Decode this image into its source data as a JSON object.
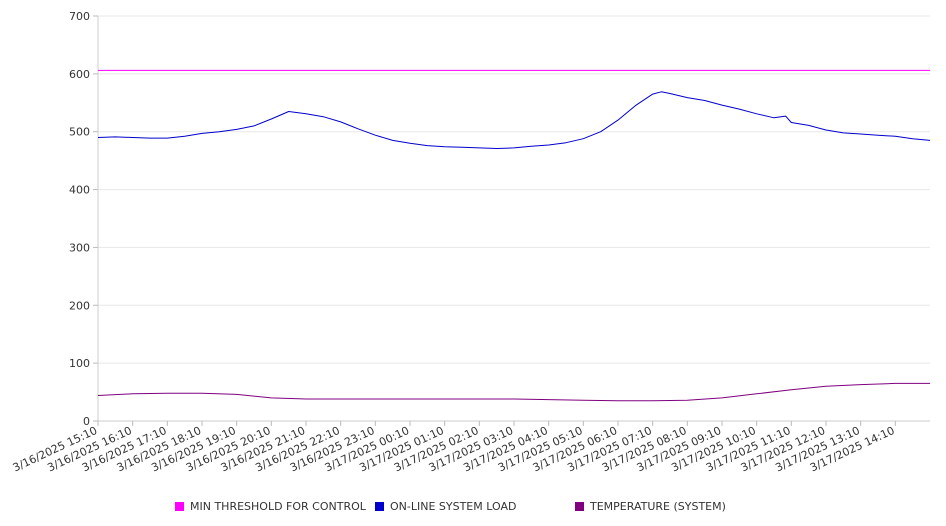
{
  "chart_data": {
    "type": "line",
    "title": "",
    "xlabel": "",
    "ylabel": "",
    "ylim": [
      0,
      700
    ],
    "yticks": [
      "0",
      "100",
      "200",
      "300",
      "400",
      "500",
      "600",
      "700"
    ],
    "xticks": [
      "3/16/2025 15:10",
      "3/16/2025 16:10",
      "3/16/2025 17:10",
      "3/16/2025 18:10",
      "3/16/2025 19:10",
      "3/16/2025 20:10",
      "3/16/2025 21:10",
      "3/16/2025 22:10",
      "3/16/2025 23:10",
      "3/17/2025 00:10",
      "3/17/2025 01:10",
      "3/17/2025 02:10",
      "3/17/2025 03:10",
      "3/17/2025 04:10",
      "3/17/2025 05:10",
      "3/17/2025 06:10",
      "3/17/2025 07:10",
      "3/17/2025 08:10",
      "3/17/2025 09:10",
      "3/17/2025 10:10",
      "3/17/2025 11:10",
      "3/17/2025 12:10",
      "3/17/2025 13:10",
      "3/17/2025 14:10"
    ],
    "x_range": [
      "3/16/2025 15:10",
      "3/17/2025 15:10"
    ],
    "grid": true,
    "legend_position": "bottom",
    "series": [
      {
        "name": "MIN THRESHOLD FOR CONTROL",
        "color": "#ff00ff",
        "points": [
          [
            "3/16/2025 15:10",
            606
          ],
          [
            "3/17/2025 15:10",
            606
          ]
        ]
      },
      {
        "name": "ON-LINE SYSTEM LOAD",
        "color": "#0000cc",
        "points": [
          [
            "3/16/2025 15:10",
            490
          ],
          [
            "3/16/2025 15:40",
            491
          ],
          [
            "3/16/2025 16:10",
            490
          ],
          [
            "3/16/2025 16:40",
            489
          ],
          [
            "3/16/2025 17:10",
            489
          ],
          [
            "3/16/2025 17:40",
            492
          ],
          [
            "3/16/2025 18:10",
            497
          ],
          [
            "3/16/2025 18:40",
            500
          ],
          [
            "3/16/2025 19:10",
            504
          ],
          [
            "3/16/2025 19:40",
            510
          ],
          [
            "3/16/2025 20:10",
            522
          ],
          [
            "3/16/2025 20:40",
            535
          ],
          [
            "3/16/2025 21:10",
            531
          ],
          [
            "3/16/2025 21:40",
            526
          ],
          [
            "3/16/2025 22:10",
            517
          ],
          [
            "3/16/2025 22:40",
            505
          ],
          [
            "3/16/2025 23:10",
            494
          ],
          [
            "3/16/2025 23:40",
            485
          ],
          [
            "3/17/2025 00:10",
            480
          ],
          [
            "3/17/2025 00:40",
            476
          ],
          [
            "3/17/2025 01:10",
            474
          ],
          [
            "3/17/2025 01:40",
            473
          ],
          [
            "3/17/2025 02:10",
            472
          ],
          [
            "3/17/2025 02:40",
            471
          ],
          [
            "3/17/2025 03:10",
            472
          ],
          [
            "3/17/2025 03:40",
            475
          ],
          [
            "3/17/2025 04:10",
            477
          ],
          [
            "3/17/2025 04:40",
            481
          ],
          [
            "3/17/2025 05:10",
            488
          ],
          [
            "3/17/2025 05:40",
            500
          ],
          [
            "3/17/2025 06:10",
            520
          ],
          [
            "3/17/2025 06:40",
            545
          ],
          [
            "3/17/2025 07:10",
            565
          ],
          [
            "3/17/2025 07:25",
            569
          ],
          [
            "3/17/2025 07:40",
            566
          ],
          [
            "3/17/2025 08:10",
            559
          ],
          [
            "3/17/2025 08:40",
            554
          ],
          [
            "3/17/2025 09:10",
            546
          ],
          [
            "3/17/2025 09:40",
            539
          ],
          [
            "3/17/2025 10:10",
            531
          ],
          [
            "3/17/2025 10:40",
            524
          ],
          [
            "3/17/2025 11:00",
            527
          ],
          [
            "3/17/2025 11:10",
            516
          ],
          [
            "3/17/2025 11:40",
            511
          ],
          [
            "3/17/2025 12:10",
            503
          ],
          [
            "3/17/2025 12:40",
            498
          ],
          [
            "3/17/2025 13:10",
            496
          ],
          [
            "3/17/2025 13:40",
            494
          ],
          [
            "3/17/2025 14:10",
            492
          ],
          [
            "3/17/2025 14:40",
            488
          ],
          [
            "3/17/2025 15:10",
            485
          ]
        ]
      },
      {
        "name": "TEMPERATURE (SYSTEM)",
        "color": "#800080",
        "points": [
          [
            "3/16/2025 15:10",
            44
          ],
          [
            "3/16/2025 16:10",
            47
          ],
          [
            "3/16/2025 17:10",
            48
          ],
          [
            "3/16/2025 18:10",
            48
          ],
          [
            "3/16/2025 19:10",
            46
          ],
          [
            "3/16/2025 20:10",
            40
          ],
          [
            "3/16/2025 21:10",
            38
          ],
          [
            "3/16/2025 22:10",
            38
          ],
          [
            "3/16/2025 23:10",
            38
          ],
          [
            "3/17/2025 00:10",
            38
          ],
          [
            "3/17/2025 01:10",
            38
          ],
          [
            "3/17/2025 02:10",
            38
          ],
          [
            "3/17/2025 03:10",
            38
          ],
          [
            "3/17/2025 04:10",
            37
          ],
          [
            "3/17/2025 05:10",
            36
          ],
          [
            "3/17/2025 06:10",
            35
          ],
          [
            "3/17/2025 07:10",
            35
          ],
          [
            "3/17/2025 08:10",
            36
          ],
          [
            "3/17/2025 09:10",
            40
          ],
          [
            "3/17/2025 10:10",
            47
          ],
          [
            "3/17/2025 11:10",
            54
          ],
          [
            "3/17/2025 12:10",
            60
          ],
          [
            "3/17/2025 13:10",
            63
          ],
          [
            "3/17/2025 14:10",
            65
          ],
          [
            "3/17/2025 15:10",
            65
          ]
        ]
      }
    ]
  }
}
